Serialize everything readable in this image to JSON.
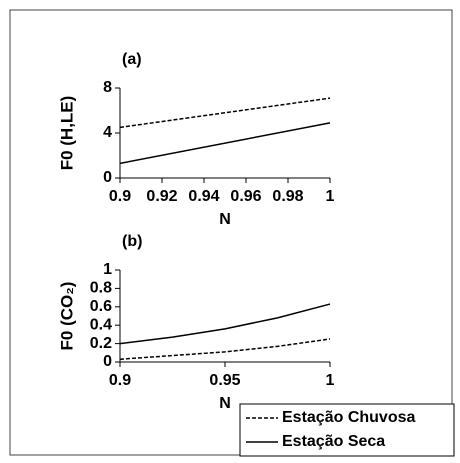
{
  "chart_data": [
    {
      "type": "line",
      "title": "(a)",
      "y_label": "F0 (H,LE)",
      "x_label": "N",
      "x": [
        0.9,
        1
      ],
      "series": [
        {
          "name": "Estação Chuvosa",
          "color": "#000000",
          "dashed": true,
          "values": [
            4.5,
            7.1
          ]
        },
        {
          "name": "Estação Seca",
          "color": "#000000",
          "dashed": false,
          "values": [
            1.3,
            4.9
          ]
        }
      ],
      "xlim": [
        0.9,
        1
      ],
      "xticks": [
        0.9,
        0.92,
        0.94,
        0.96,
        0.98,
        1
      ],
      "ylim": [
        0,
        8
      ],
      "yticks": [
        0,
        4,
        8
      ]
    },
    {
      "type": "line",
      "title": "(b)",
      "y_label": "F0 (CO₂)",
      "x_label": "N",
      "x": [
        0.9,
        0.925,
        0.95,
        0.975,
        1
      ],
      "series": [
        {
          "name": "Estação Chuvosa",
          "color": "#000000",
          "dashed": true,
          "values": [
            0.03,
            0.07,
            0.11,
            0.17,
            0.25
          ]
        },
        {
          "name": "Estação Seca",
          "color": "#000000",
          "dashed": false,
          "values": [
            0.2,
            0.27,
            0.36,
            0.48,
            0.63
          ]
        }
      ],
      "xlim": [
        0.9,
        1
      ],
      "xticks": [
        0.9,
        0.95,
        1
      ],
      "ylim": [
        0,
        1
      ],
      "yticks": [
        0,
        0.2,
        0.4,
        0.6,
        0.8,
        1
      ],
      "legend": "bottom-right"
    }
  ]
}
